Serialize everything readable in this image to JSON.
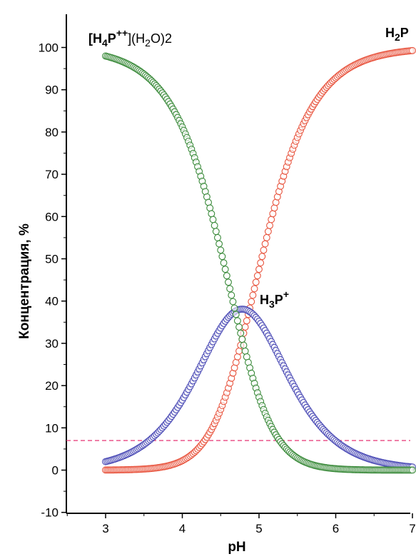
{
  "chart_data": {
    "type": "scatter",
    "xlabel": "pH",
    "ylabel": "Концентрация, %",
    "xlim": [
      2.5,
      7.0
    ],
    "ylim": [
      -10,
      110
    ],
    "x_ticks": [
      "3",
      "4",
      "5",
      "6",
      "7"
    ],
    "y_ticks": [
      "-10",
      "0",
      "10",
      "20",
      "30",
      "40",
      "50",
      "60",
      "70",
      "80",
      "90",
      "100"
    ],
    "x_ticks_num": [
      3,
      4,
      5,
      6,
      7
    ],
    "y_ticks_num": [
      -10,
      0,
      10,
      20,
      30,
      40,
      50,
      60,
      70,
      80,
      90,
      100
    ],
    "grid": false,
    "species_model": {
      "pKa1": 4.69,
      "pKa2": 4.87,
      "x_start": 3.0,
      "x_end": 7.0,
      "step": 0.02
    },
    "series": [
      {
        "key": "h4p",
        "color": "#3a8a3a",
        "fraction": "H4P",
        "x": [
          3.0,
          3.5,
          4.0,
          4.25,
          4.5,
          4.75,
          5.0,
          5.25,
          5.5,
          6.0,
          6.5,
          7.0
        ],
        "values": [
          98.0,
          93.9,
          79.2,
          64.3,
          44.7,
          25.1,
          11.5,
          4.7,
          1.6,
          0.2,
          0.0,
          0.0
        ]
      },
      {
        "key": "h3p",
        "color": "#4a4ab5",
        "fraction": "H3P",
        "x": [
          3.0,
          3.5,
          4.0,
          4.25,
          4.5,
          4.75,
          5.0,
          5.25,
          5.5,
          6.0,
          6.5,
          7.0
        ],
        "values": [
          2.0,
          6.1,
          16.1,
          24.7,
          33.3,
          37.2,
          32.7,
          22.4,
          12.4,
          2.6,
          0.4,
          0.1
        ]
      },
      {
        "key": "h2p",
        "color": "#e8553f",
        "fraction": "H2P",
        "x": [
          3.0,
          3.5,
          4.0,
          4.25,
          4.5,
          4.75,
          5.0,
          5.25,
          5.5,
          6.0,
          6.5,
          7.0
        ],
        "values": [
          0.0,
          0.0,
          4.6,
          11.0,
          22.0,
          37.7,
          55.8,
          72.9,
          86.0,
          97.2,
          99.6,
          99.9
        ]
      }
    ],
    "reference_line": {
      "y": 7,
      "color": "#e8457f"
    },
    "annotations": {
      "h4p_a": "[H",
      "h4p_b": "4",
      "h4p_c": "P",
      "h4p_d": "++",
      "h4p_e": "](H",
      "h4p_f": "2",
      "h4p_g": "O)2",
      "h3p_a": "H",
      "h3p_b": "3",
      "h3p_c": "P",
      "h3p_d": "+",
      "h2p_a": "H",
      "h2p_b": "2",
      "h2p_c": "P"
    }
  }
}
